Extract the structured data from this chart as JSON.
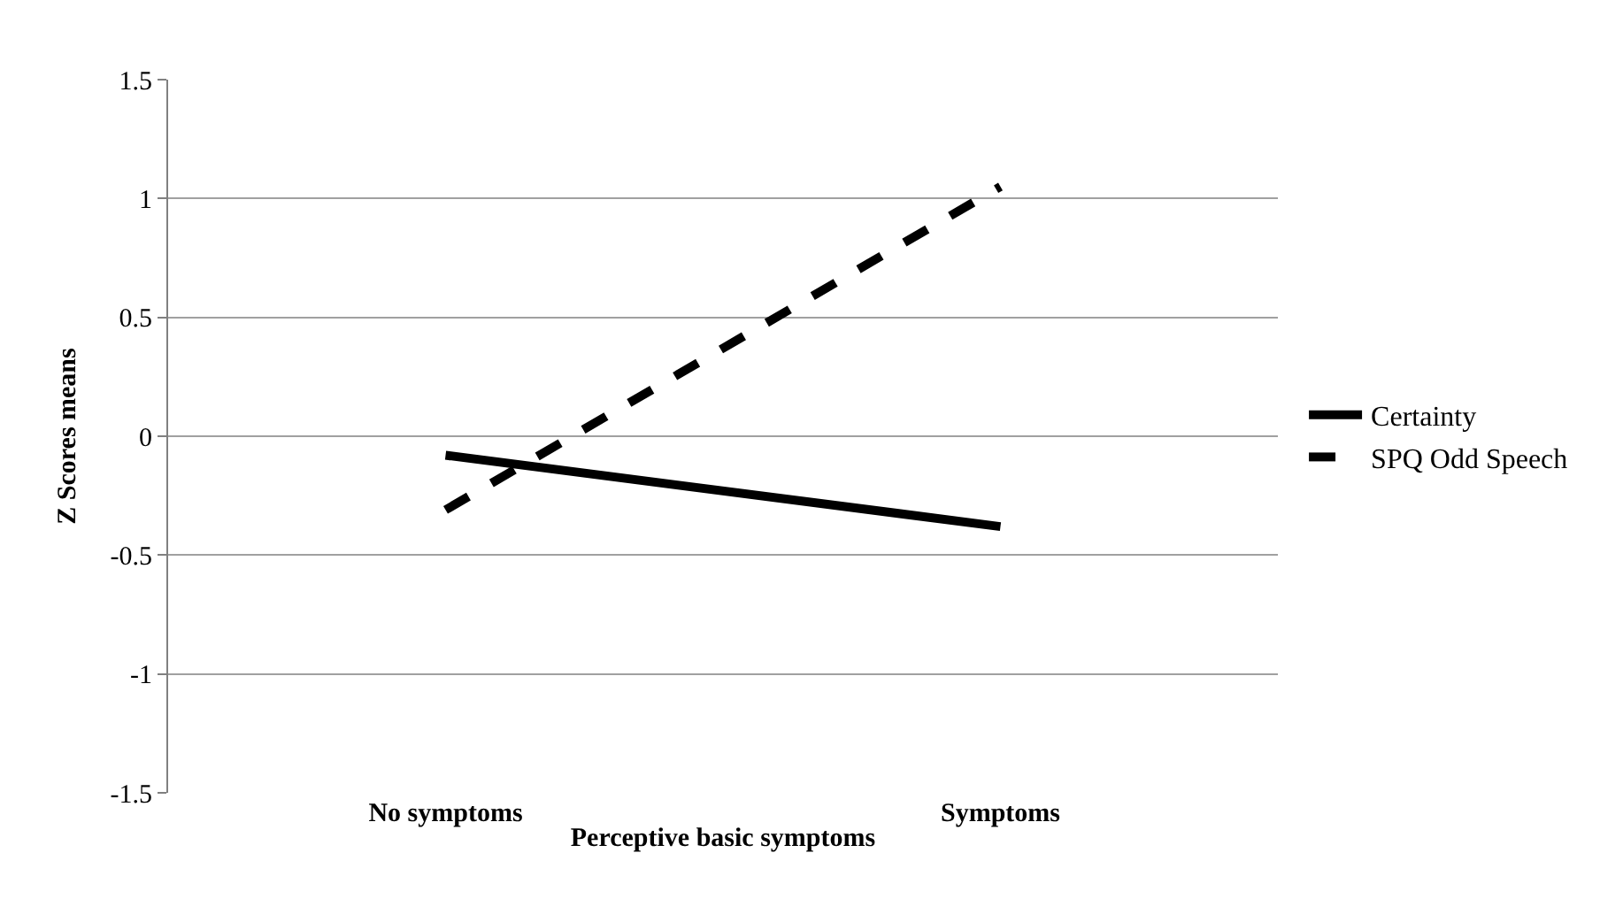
{
  "chart_data": {
    "type": "line",
    "xlabel": "Perceptive basic symptoms",
    "ylabel": "Z Scores means",
    "categories": [
      "No symptoms",
      "Symptoms"
    ],
    "series": [
      {
        "name": "Certainty",
        "color": "#000000",
        "values": [
          -0.08,
          -0.38
        ],
        "line_style": "solid"
      },
      {
        "name": "SPQ Odd Speech",
        "color": "#000000",
        "values": [
          -0.31,
          1.05
        ],
        "line_style": "dashed"
      }
    ],
    "ylim": [
      -1.5,
      1.5
    ],
    "yticks": [
      -1.5,
      -1,
      -0.5,
      0,
      0.5,
      1,
      1.5
    ],
    "grid": "y",
    "legend": "right",
    "marker": "none"
  }
}
